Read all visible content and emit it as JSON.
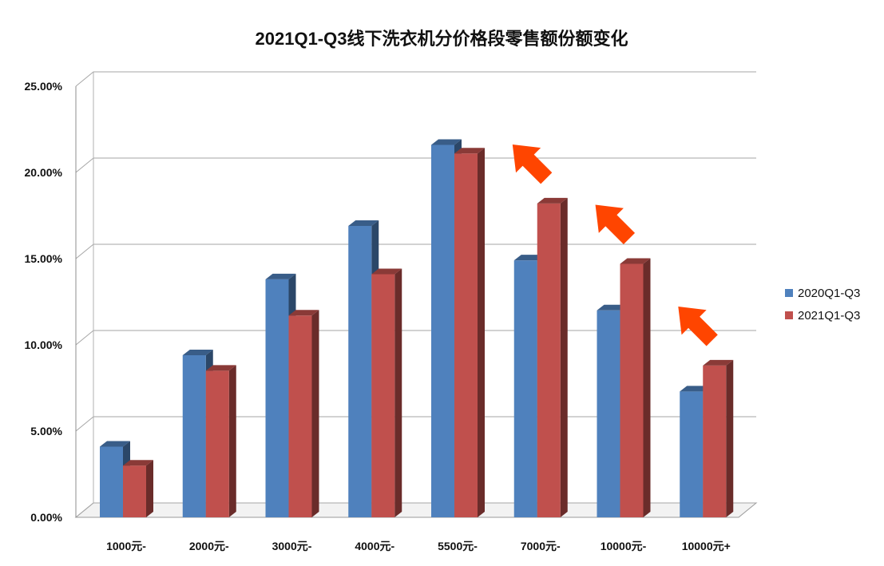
{
  "chart_data": {
    "type": "bar",
    "title": "2021Q1-Q3线下洗衣机分价格段零售额份额变化",
    "categories": [
      "1000元-",
      "2000元-",
      "3000元-",
      "4000元-",
      "5500元-",
      "7000元-",
      "10000元-",
      "10000元+"
    ],
    "series": [
      {
        "name": "2020Q1-Q3",
        "values": [
          4.1,
          9.4,
          13.8,
          16.9,
          21.6,
          14.9,
          12.0,
          7.3
        ],
        "color": "#4f81bd"
      },
      {
        "name": "2021Q1-Q3",
        "values": [
          3.0,
          8.5,
          11.7,
          14.1,
          21.1,
          18.2,
          14.7,
          8.8
        ],
        "color": "#c0504d"
      }
    ],
    "y_ticks": [
      "0.00%",
      "5.00%",
      "10.00%",
      "15.00%",
      "20.00%",
      "25.00%"
    ],
    "ylim": [
      0,
      25
    ],
    "y_unit": "%",
    "grid": true,
    "legend_position": "right",
    "style": "3d-clustered-column",
    "annotations": [
      {
        "type": "up-arrow",
        "category": "7000元-",
        "color": "#ff4500"
      },
      {
        "type": "up-arrow",
        "category": "10000元-",
        "color": "#ff4500"
      },
      {
        "type": "up-arrow",
        "category": "10000元+",
        "color": "#ff4500"
      }
    ]
  }
}
